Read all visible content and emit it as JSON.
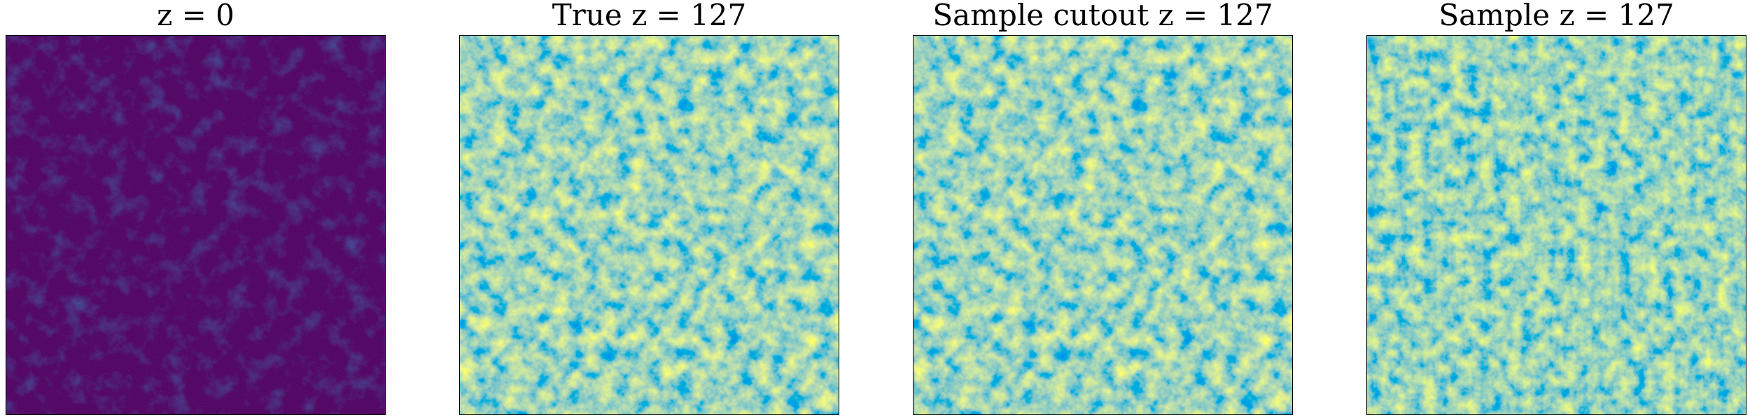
{
  "figure": {
    "panels": [
      {
        "title": "z = 0",
        "field": "evolved-density",
        "colormap": "viridis",
        "seed": 7
      },
      {
        "title": "True z = 127",
        "field": "initial-density",
        "colormap": "viridis",
        "seed": 21
      },
      {
        "title": "Sample cutout z = 127",
        "field": "initial-density",
        "colormap": "viridis",
        "seed": 21
      },
      {
        "title": "Sample z = 127",
        "field": "initial-density",
        "colormap": "viridis",
        "seed": 33
      }
    ],
    "colors": {
      "low_z0": "#440154",
      "high": "#fde725",
      "mid": "#21918c"
    }
  }
}
